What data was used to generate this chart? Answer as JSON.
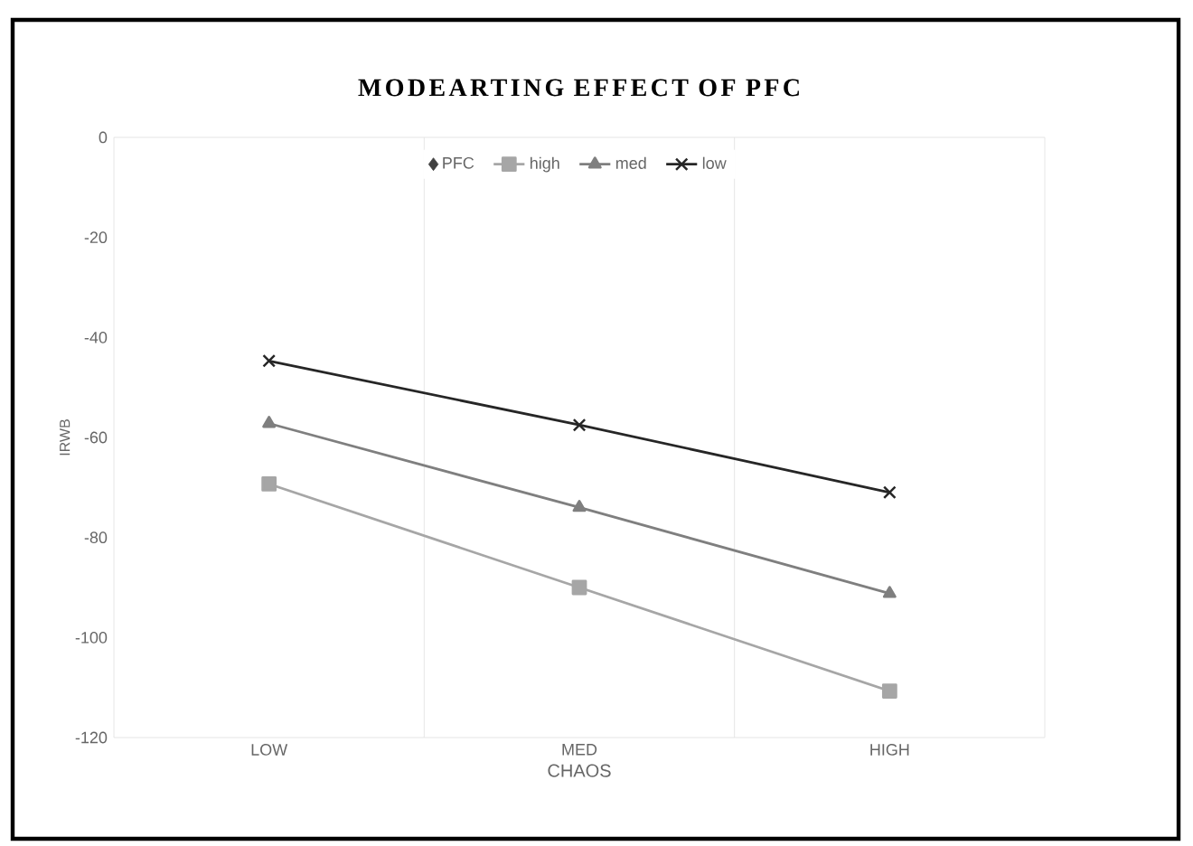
{
  "chart_data": {
    "type": "line",
    "title": "MODEARTING EFFECT OF PFC",
    "xlabel": "CHAOS",
    "ylabel": "IRWB",
    "categories": [
      "LOW",
      "MED",
      "HIGH"
    ],
    "series": [
      {
        "name": "PFC",
        "color": "#404040",
        "values": [
          null,
          null,
          null
        ],
        "marker": "diamond",
        "line_style": "none"
      },
      {
        "name": "high",
        "color": "#a6a6a6",
        "values": [
          -69.3,
          -90.0,
          -110.7
        ],
        "marker": "square",
        "line_style": "solid"
      },
      {
        "name": "med",
        "color": "#7f7f7f",
        "values": [
          -57.2,
          -74.0,
          -91.2
        ],
        "marker": "triangle",
        "line_style": "solid"
      },
      {
        "name": "low",
        "color": "#262626",
        "values": [
          -44.7,
          -57.5,
          -71.0
        ],
        "marker": "cross",
        "line_style": "solid"
      }
    ],
    "ylim": [
      -120,
      0
    ],
    "yticks": [
      0,
      -20,
      -40,
      -60,
      -80,
      -100,
      -120
    ],
    "grid": "x",
    "legend": "top"
  }
}
